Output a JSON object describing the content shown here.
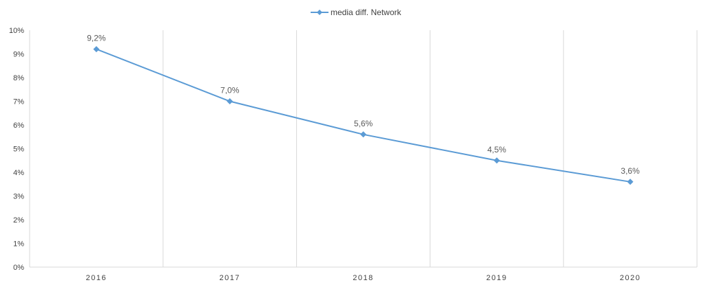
{
  "chart_data": {
    "type": "line",
    "title": "",
    "xlabel": "",
    "ylabel": "",
    "categories": [
      "2016",
      "2017",
      "2018",
      "2019",
      "2020"
    ],
    "series": [
      {
        "name": "media diff. Network",
        "values": [
          9.2,
          7.0,
          5.6,
          4.5,
          3.6
        ],
        "data_labels": [
          "9,2%",
          "7,0%",
          "5,6%",
          "4,5%",
          "3,6%"
        ],
        "color": "#5b9bd5",
        "marker": "diamond"
      }
    ],
    "ylim": [
      0,
      10
    ],
    "yticks": [
      "0%",
      "1%",
      "2%",
      "3%",
      "4%",
      "5%",
      "6%",
      "7%",
      "8%",
      "9%",
      "10%"
    ],
    "grid": "vertical category separators",
    "legend_position": "top-center"
  }
}
